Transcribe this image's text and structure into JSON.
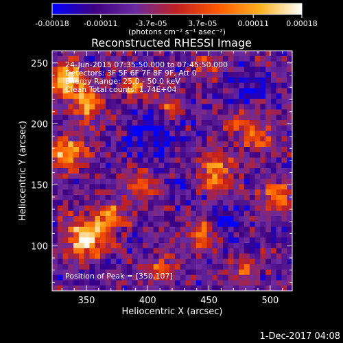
{
  "colorbar": {
    "tick_labels": [
      "-0.00018",
      "-0.00011",
      "-3.7e-05",
      "3.7e-05",
      "0.00011",
      "0.00018"
    ],
    "tick_values": [
      -0.00018,
      -0.00011,
      -3.7e-05,
      3.7e-05,
      0.00011,
      0.00018
    ],
    "range": [
      -0.00018,
      0.00018
    ],
    "unit_label": "(photons cm⁻² s⁻¹ asec⁻²)",
    "colors": [
      "#0000ff",
      "#3d0080",
      "#6a2aa0",
      "#c02020",
      "#ff5a00",
      "#ffb020",
      "#ffffff"
    ]
  },
  "chart_data": {
    "type": "heatmap",
    "title": "Reconstructed RHESSI Image",
    "xlabel": "Heliocentric X (arcsec)",
    "ylabel": "Heliocentric Y (arcsec)",
    "xlim": [
      322,
      518
    ],
    "ylim": [
      63,
      260
    ],
    "x_ticks": [
      350,
      400,
      450,
      500
    ],
    "y_ticks": [
      100,
      150,
      200,
      250
    ],
    "annotations": [
      "24-Jun-2015 07:35:50.000 to 07:45:50.000",
      "Detectors: 3F 5F 6F 7F 8F 9F, Att 0",
      "Energy Range: 25.0 - 50.0 keV",
      "Clean     Total counts: 1.74E+04"
    ],
    "peak_label": "Position of Peak = [350,107]",
    "peak": [
      350,
      107
    ],
    "grid": {
      "nx": 45,
      "ny": 45
    },
    "hotspots": [
      [
        335,
        235,
        1.0,
        14
      ],
      [
        350,
        215,
        0.9,
        12
      ],
      [
        335,
        175,
        0.95,
        14
      ],
      [
        350,
        107,
        1.2,
        16
      ],
      [
        370,
        125,
        0.8,
        12
      ],
      [
        395,
        150,
        0.7,
        12
      ],
      [
        390,
        230,
        0.7,
        10
      ],
      [
        420,
        215,
        0.7,
        10
      ],
      [
        450,
        245,
        0.6,
        10
      ],
      [
        455,
        160,
        0.9,
        14
      ],
      [
        445,
        110,
        0.7,
        12
      ],
      [
        490,
        190,
        0.8,
        12
      ],
      [
        505,
        140,
        0.8,
        12
      ],
      [
        480,
        80,
        0.7,
        10
      ],
      [
        410,
        80,
        0.6,
        10
      ],
      [
        470,
        200,
        0.5,
        10
      ]
    ],
    "coldspots": [
      [
        405,
        190,
        0.8,
        20
      ],
      [
        460,
        120,
        0.7,
        12
      ],
      [
        480,
        230,
        0.6,
        12
      ],
      [
        430,
        150,
        0.5,
        10
      ]
    ]
  },
  "footer_date": "1-Dec-2017 04:08"
}
